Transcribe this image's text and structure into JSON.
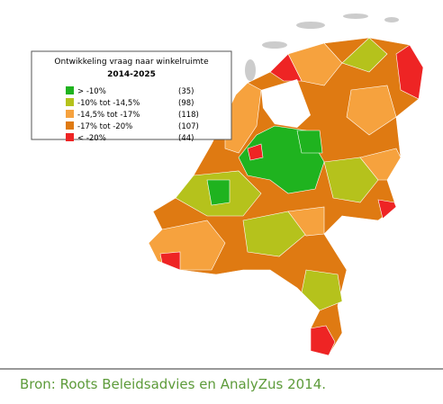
{
  "legend": {
    "title": "Ontwikkeling vraag naar winkelruimte",
    "subtitle": "2014-2025",
    "items": [
      {
        "label": "> -10%",
        "count": "(35)",
        "color": "#1fb31f"
      },
      {
        "label": "-10%   tot -14,5%",
        "count": "(98)",
        "color": "#b5c21c"
      },
      {
        "label": "-14,5% tot -17%",
        "count": "(118)",
        "color": "#f6a23e"
      },
      {
        "label": "-17%   tot -20%",
        "count": "(107)",
        "color": "#df7a12"
      },
      {
        "label": "< -20%",
        "count": "(44)",
        "color": "#ee2424"
      }
    ]
  },
  "caption": "Bron: Roots Beleidsadvies en AnalyZus 2014."
}
